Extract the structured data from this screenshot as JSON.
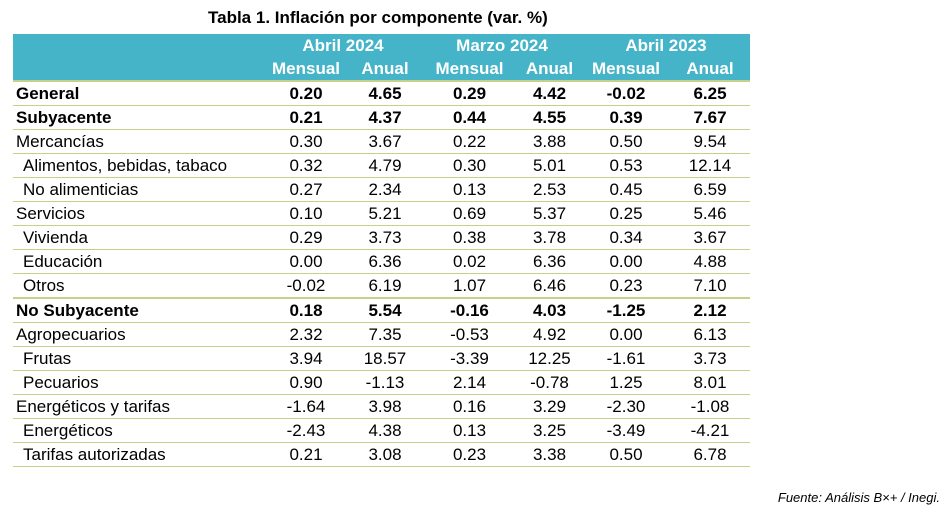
{
  "title": "Tabla 1. Inflación por componente (var. %)",
  "periods": [
    "Abril 2024",
    "Marzo 2024",
    "Abril 2023"
  ],
  "subheaders": [
    "Mensual",
    "Anual",
    "Mensual",
    "Anual",
    "Mensual",
    "Anual"
  ],
  "rows": [
    {
      "label": "General",
      "values": [
        "0.20",
        "4.65",
        "0.29",
        "4.42",
        "-0.02",
        "6.25"
      ]
    },
    {
      "label": "Subyacente",
      "values": [
        "0.21",
        "4.37",
        "0.44",
        "4.55",
        "0.39",
        "7.67"
      ]
    },
    {
      "label": "Mercancías",
      "values": [
        "0.30",
        "3.67",
        "0.22",
        "3.88",
        "0.50",
        "9.54"
      ]
    },
    {
      "label": "Alimentos, bebidas, tabaco",
      "values": [
        "0.32",
        "4.79",
        "0.30",
        "5.01",
        "0.53",
        "12.14"
      ]
    },
    {
      "label": "No alimenticias",
      "values": [
        "0.27",
        "2.34",
        "0.13",
        "2.53",
        "0.45",
        "6.59"
      ]
    },
    {
      "label": "Servicios",
      "values": [
        "0.10",
        "5.21",
        "0.69",
        "5.37",
        "0.25",
        "5.46"
      ]
    },
    {
      "label": "Vivienda",
      "values": [
        "0.29",
        "3.73",
        "0.38",
        "3.78",
        "0.34",
        "3.67"
      ]
    },
    {
      "label": "Educación",
      "values": [
        "0.00",
        "6.36",
        "0.02",
        "6.36",
        "0.00",
        "4.88"
      ]
    },
    {
      "label": "Otros",
      "values": [
        "-0.02",
        "6.19",
        "1.07",
        "6.46",
        "0.23",
        "7.10"
      ]
    },
    {
      "label": "No Subyacente",
      "values": [
        "0.18",
        "5.54",
        "-0.16",
        "4.03",
        "-1.25",
        "2.12"
      ]
    },
    {
      "label": "Agropecuarios",
      "values": [
        "2.32",
        "7.35",
        "-0.53",
        "4.92",
        "0.00",
        "6.13"
      ]
    },
    {
      "label": "Frutas",
      "values": [
        "3.94",
        "18.57",
        "-3.39",
        "12.25",
        "-1.61",
        "3.73"
      ]
    },
    {
      "label": "Pecuarios",
      "values": [
        "0.90",
        "-1.13",
        "2.14",
        "-0.78",
        "1.25",
        "8.01"
      ]
    },
    {
      "label": "Energéticos y tarifas",
      "values": [
        "-1.64",
        "3.98",
        "0.16",
        "3.29",
        "-2.30",
        "-1.08"
      ]
    },
    {
      "label": "Energéticos",
      "values": [
        "-2.43",
        "4.38",
        "0.13",
        "3.25",
        "-3.49",
        "-4.21"
      ]
    },
    {
      "label": "Tarifas autorizadas",
      "values": [
        "0.21",
        "3.08",
        "0.23",
        "3.38",
        "0.50",
        "6.78"
      ]
    }
  ],
  "source": "Fuente: Análisis B×+ /  Inegi.",
  "colors": {
    "header_bg": "#45b4c8",
    "header_text": "#ffffff",
    "rule": "#c7d08a"
  }
}
